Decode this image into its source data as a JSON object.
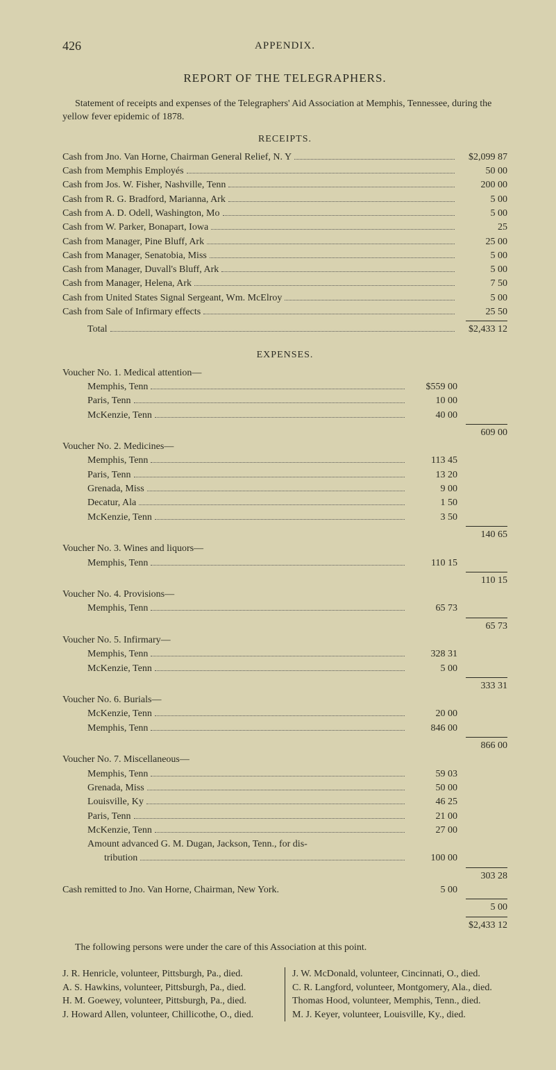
{
  "page_number": "426",
  "running_head": "APPENDIX.",
  "report_title": "REPORT OF THE TELEGRAPHERS.",
  "intro": "Statement of receipts and expenses of the Telegraphers' Aid Association at Memphis, Tennessee, during the yellow fever epidemic of 1878.",
  "receipts_head": "RECEIPTS.",
  "receipts": [
    {
      "label": "Cash from Jno. Van Horne, Chairman General Relief, N. Y",
      "amt": "$2,099 87"
    },
    {
      "label": "Cash from Memphis Employés",
      "amt": "50 00"
    },
    {
      "label": "Cash from Jos. W. Fisher, Nashville, Tenn",
      "amt": "200 00"
    },
    {
      "label": "Cash from R. G. Bradford, Marianna, Ark",
      "amt": "5 00"
    },
    {
      "label": "Cash from A. D. Odell, Washington, Mo",
      "amt": "5 00"
    },
    {
      "label": "Cash from W. Parker, Bonapart, Iowa",
      "amt": "25"
    },
    {
      "label": "Cash from Manager, Pine Bluff, Ark",
      "amt": "25 00"
    },
    {
      "label": "Cash from Manager, Senatobia, Miss",
      "amt": "5 00"
    },
    {
      "label": "Cash from Manager, Duvall's Bluff, Ark",
      "amt": "5 00"
    },
    {
      "label": "Cash from Manager, Helena, Ark",
      "amt": "7 50"
    },
    {
      "label": "Cash from United States Signal Sergeant, Wm. McElroy",
      "amt": "5 00"
    },
    {
      "label": "Cash from Sale of Infirmary effects",
      "amt": "25 50"
    }
  ],
  "receipts_total_label": "Total",
  "receipts_total": "$2,433 12",
  "expenses_head": "EXPENSES.",
  "vouchers": [
    {
      "head": "Voucher No. 1.  Medical attention—",
      "items": [
        {
          "label": "Memphis, Tenn",
          "amt": "$559 00"
        },
        {
          "label": "Paris, Tenn",
          "amt": "10 00"
        },
        {
          "label": "McKenzie, Tenn",
          "amt": "40 00"
        }
      ],
      "sum": "609 00"
    },
    {
      "head": "Voucher No. 2.  Medicines—",
      "items": [
        {
          "label": "Memphis, Tenn",
          "amt": "113 45"
        },
        {
          "label": "Paris, Tenn",
          "amt": "13 20"
        },
        {
          "label": "Grenada, Miss",
          "amt": "9 00"
        },
        {
          "label": "Decatur, Ala",
          "amt": "1 50"
        },
        {
          "label": "McKenzie, Tenn",
          "amt": "3 50"
        }
      ],
      "sum": "140 65"
    },
    {
      "head": "Voucher No. 3.  Wines and liquors—",
      "items": [
        {
          "label": "Memphis, Tenn",
          "amt": "110 15"
        }
      ],
      "sum": "110 15"
    },
    {
      "head": "Voucher No. 4.  Provisions—",
      "items": [
        {
          "label": "Memphis, Tenn",
          "amt": "65 73"
        }
      ],
      "sum": "65 73"
    },
    {
      "head": "Voucher No. 5.  Infirmary—",
      "items": [
        {
          "label": "Memphis, Tenn",
          "amt": "328 31"
        },
        {
          "label": "McKenzie, Tenn",
          "amt": "5 00"
        }
      ],
      "sum": "333 31"
    },
    {
      "head": "Voucher No. 6.  Burials—",
      "items": [
        {
          "label": "McKenzie, Tenn",
          "amt": "20 00"
        },
        {
          "label": "Memphis, Tenn",
          "amt": "846 00"
        }
      ],
      "sum": "866 00"
    },
    {
      "head": "Voucher No. 7.  Miscellaneous—",
      "items": [
        {
          "label": "Memphis, Tenn",
          "amt": "59 03"
        },
        {
          "label": "Grenada, Miss",
          "amt": "50 00"
        },
        {
          "label": "Louisville, Ky",
          "amt": "46 25"
        },
        {
          "label": "Paris, Tenn",
          "amt": "21 00"
        },
        {
          "label": "McKenzie, Tenn",
          "amt": "27 00"
        },
        {
          "label": "Amount advanced G. M. Dugan, Jackson, Tenn., for distribution",
          "amt": "100 00",
          "wrap": true
        }
      ],
      "sum": "303 28"
    }
  ],
  "cash_remitted_label": "Cash remitted to Jno. Van Horne, Chairman, New York.",
  "cash_remitted_amt": "5 00",
  "cash_remitted_sum": "5 00",
  "grand_total": "$2,433 12",
  "assoc_line": "The following persons were under the care of this Association at this point.",
  "persons_left": [
    "J. R. Henricle, volunteer, Pittsburgh, Pa., died.",
    "A. S. Hawkins, volunteer, Pittsburgh, Pa., died.",
    "H. M. Goewey, volunteer, Pittsburgh, Pa., died.",
    "J. Howard Allen, volunteer, Chillicothe, O., died."
  ],
  "persons_right": [
    "J. W. McDonald, volunteer, Cincinnati, O., died.",
    "C. R. Langford, volunteer, Montgomery, Ala., died.",
    "Thomas Hood, volunteer, Memphis, Tenn., died.",
    "M. J. Keyer, volunteer, Louisville, Ky., died."
  ],
  "colors": {
    "bg": "#d8d2b0",
    "text": "#2a2a22",
    "dot": "#555"
  }
}
